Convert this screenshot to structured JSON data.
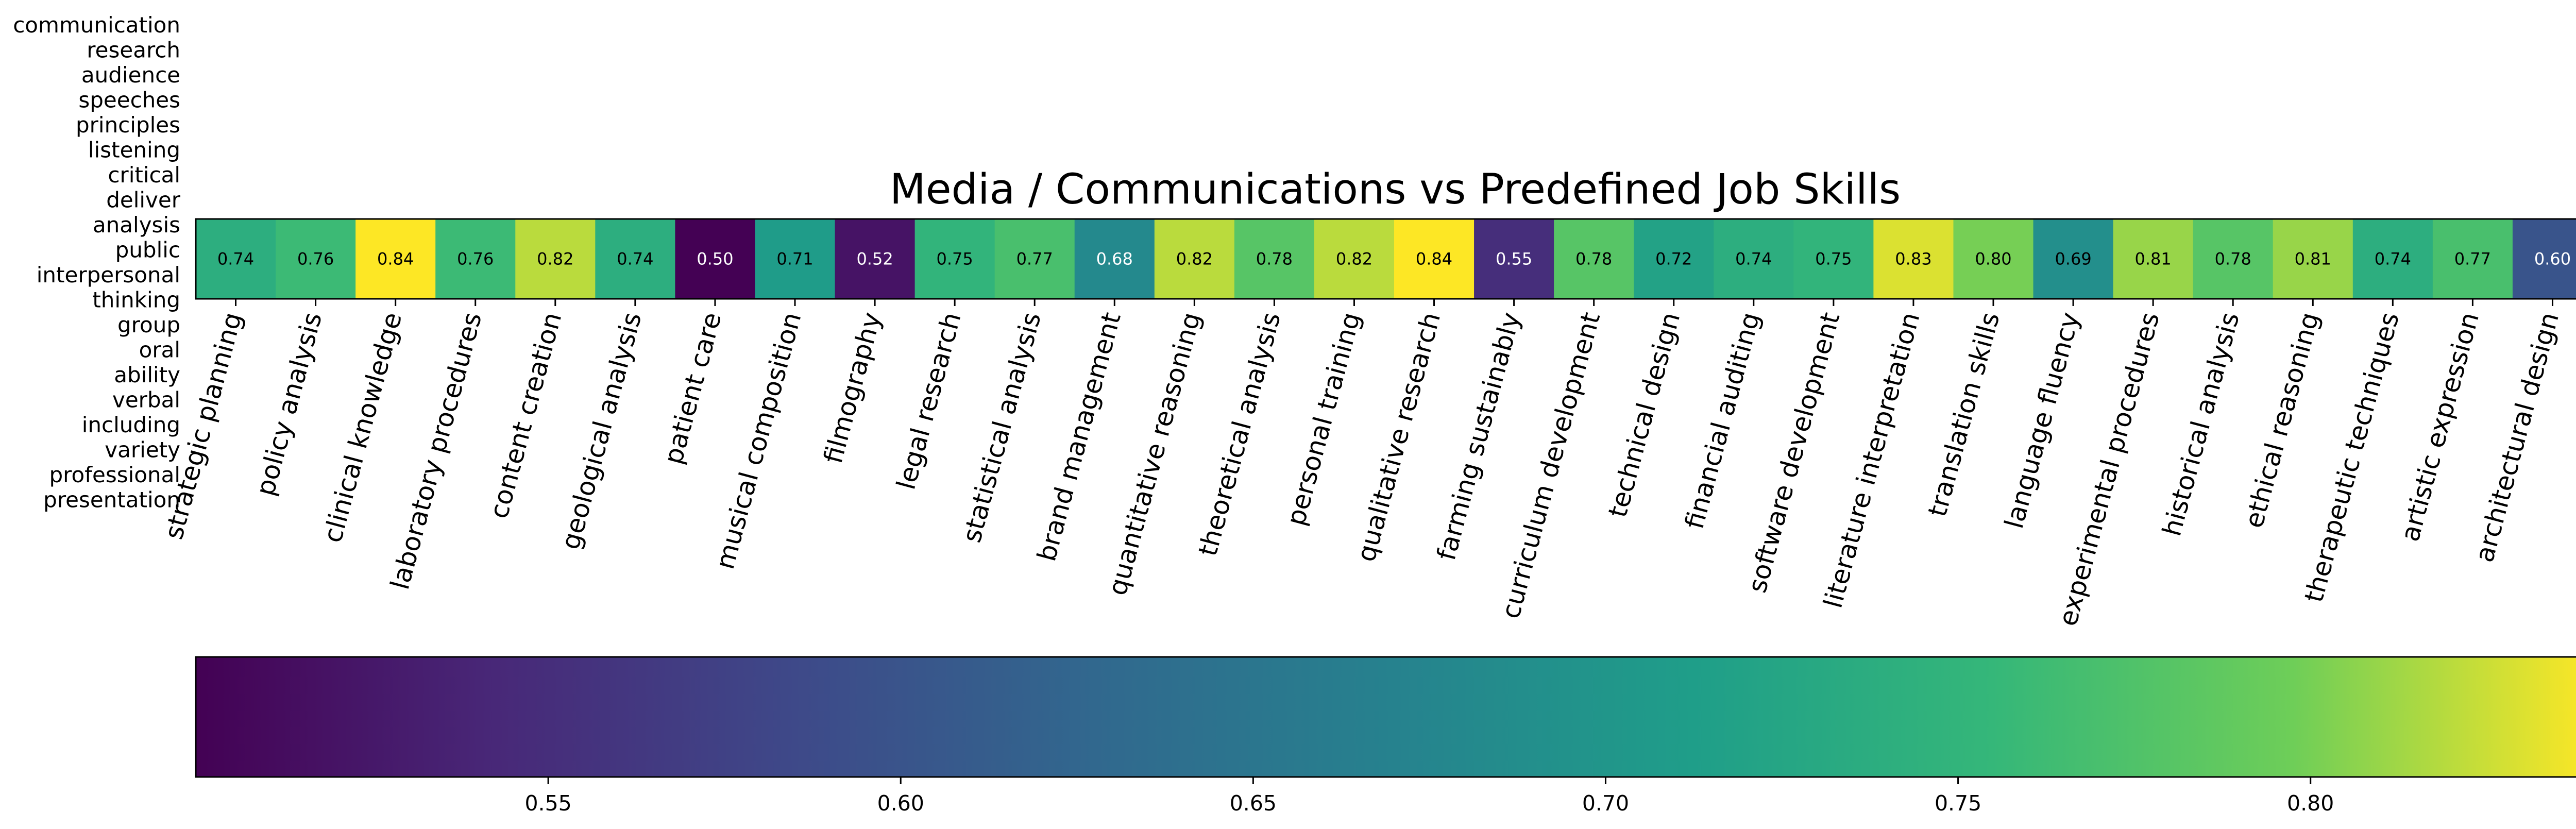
{
  "chart_data": {
    "type": "heatmap",
    "title": "Media / Communications vs Predefined Job Skills",
    "side_words": [
      "communication",
      "research",
      "audience",
      "speeches",
      "principles",
      "listening",
      "critical",
      "deliver",
      "analysis",
      "public",
      "interpersonal",
      "thinking",
      "group",
      "oral",
      "ability",
      "verbal",
      "including",
      "variety",
      "professional",
      "presentation"
    ],
    "categories": [
      "strategic planning",
      "policy analysis",
      "clinical knowledge",
      "laboratory procedures",
      "content creation",
      "geological analysis",
      "patient care",
      "musical composition",
      "filmography",
      "legal research",
      "statistical analysis",
      "brand management",
      "quantitative reasoning",
      "theoretical analysis",
      "personal training",
      "qualitative research",
      "farming sustainably",
      "curriculum development",
      "technical design",
      "financial auditing",
      "software development",
      "literature interpretation",
      "translation skills",
      "language fluency",
      "experimental procedures",
      "historical analysis",
      "ethical reasoning",
      "therapeutic techniques",
      "artistic expression",
      "architectural design"
    ],
    "values": [
      0.74,
      0.76,
      0.84,
      0.76,
      0.82,
      0.74,
      0.5,
      0.71,
      0.52,
      0.75,
      0.77,
      0.68,
      0.82,
      0.78,
      0.82,
      0.84,
      0.55,
      0.78,
      0.72,
      0.74,
      0.75,
      0.83,
      0.8,
      0.69,
      0.81,
      0.78,
      0.81,
      0.74,
      0.77,
      0.6
    ],
    "colorbar": {
      "colormap": "viridis",
      "vmin": 0.5,
      "vmax": 0.84,
      "ticks": [
        0.55,
        0.6,
        0.65,
        0.7,
        0.75,
        0.8
      ],
      "tick_labels": [
        "0.55",
        "0.60",
        "0.65",
        "0.70",
        "0.75",
        "0.80"
      ],
      "orientation": "horizontal"
    }
  }
}
